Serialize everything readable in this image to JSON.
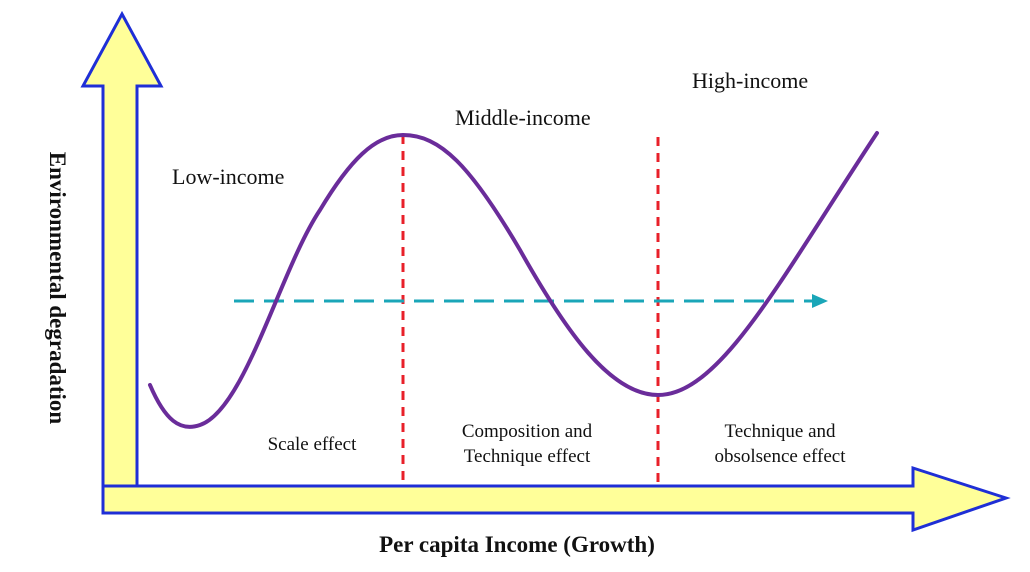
{
  "axes": {
    "x_title": "Per capita Income (Growth)",
    "y_title": "Environmental degradation"
  },
  "regions": [
    {
      "id": "low",
      "label": "Low-income"
    },
    {
      "id": "middle",
      "label": "Middle-income"
    },
    {
      "id": "high",
      "label": "High-income"
    }
  ],
  "effects": [
    {
      "id": "scale",
      "lines": [
        "Scale effect"
      ]
    },
    {
      "id": "composition",
      "lines": [
        "Composition and",
        "Technique effect"
      ]
    },
    {
      "id": "obsolescence",
      "lines": [
        "Technique and",
        "obsolsence effect"
      ]
    }
  ],
  "colors": {
    "arrow_fill": "#ffff99",
    "arrow_stroke": "#1f2fd6",
    "curve": "#6a2c9a",
    "divider": "#e8202a",
    "threshold_arrow": "#1aa6b8",
    "text": "#111111"
  }
}
